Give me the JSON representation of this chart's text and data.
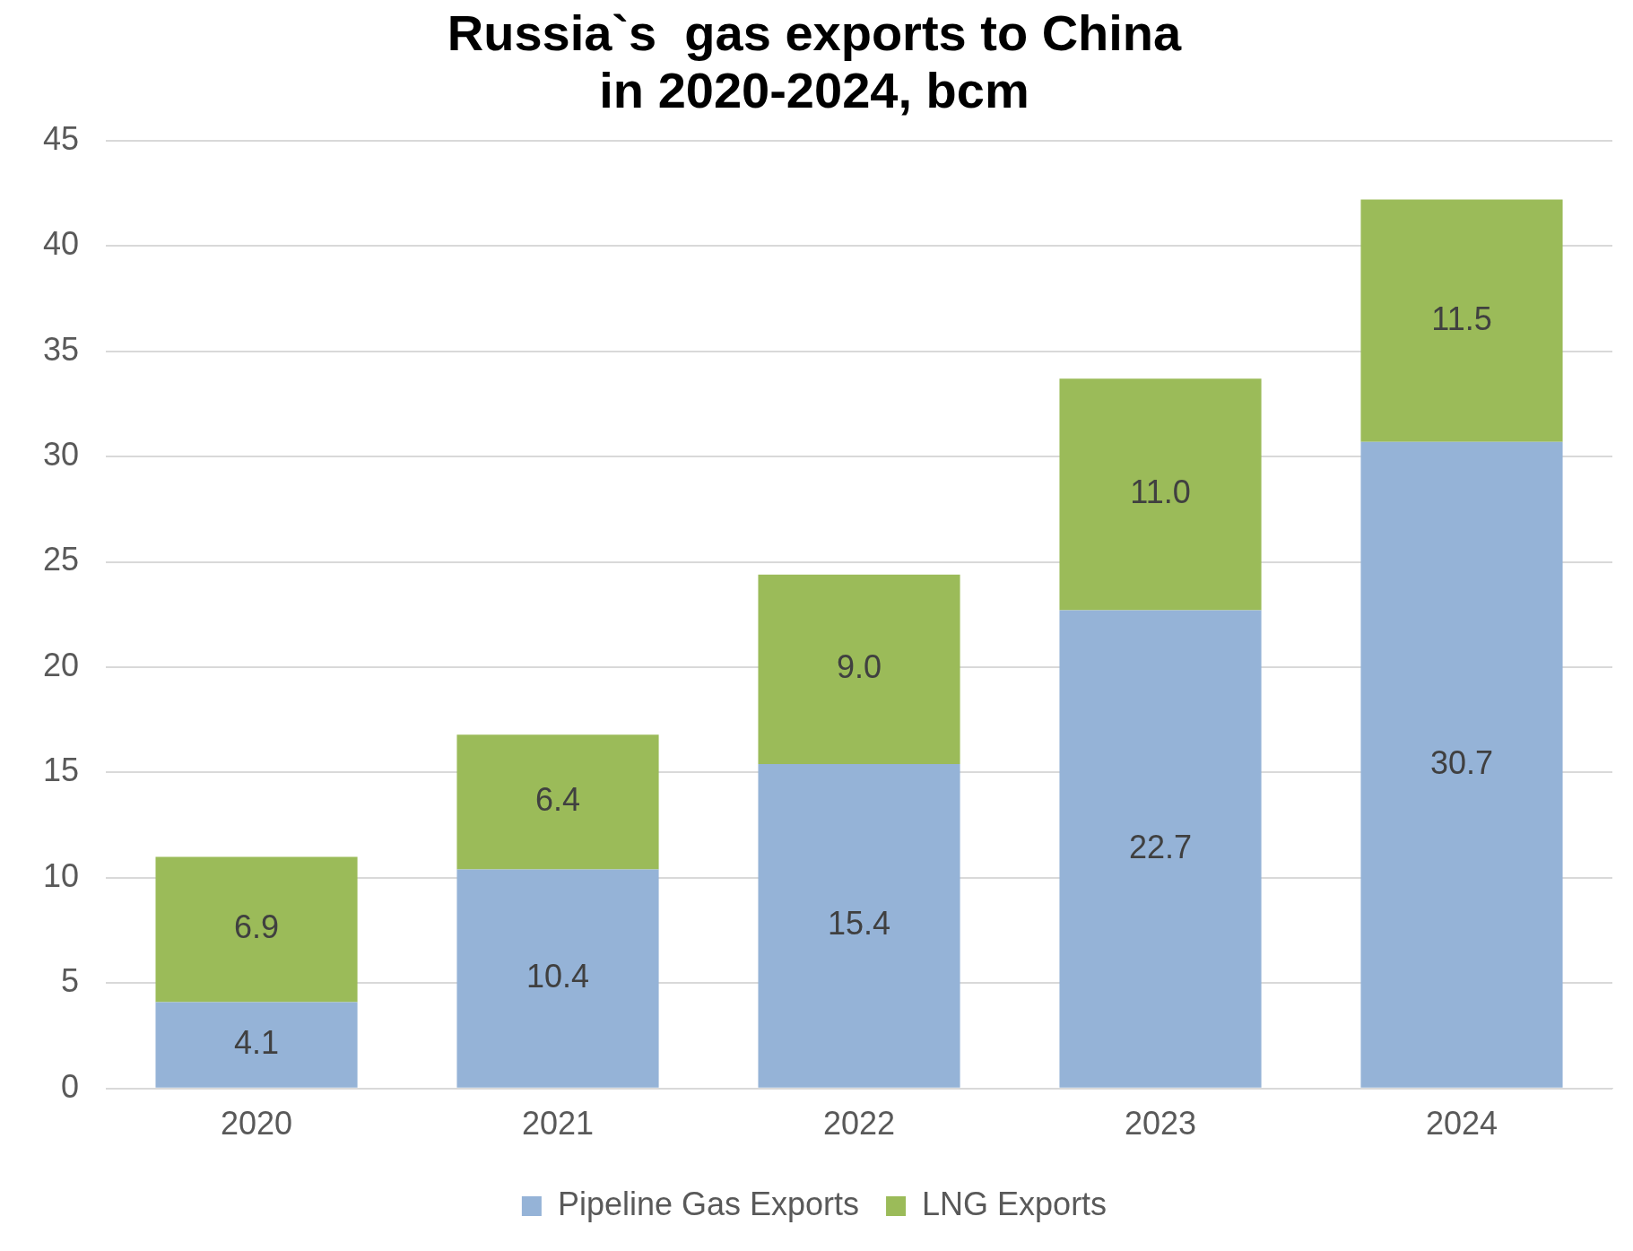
{
  "chart_data": {
    "type": "bar",
    "title": [
      "Russia`s  gas exports to China",
      "in 2020-2024, bcm"
    ],
    "categories": [
      "2020",
      "2021",
      "2022",
      "2023",
      "2024"
    ],
    "series": [
      {
        "name": "Pipeline Gas Exports",
        "color": "#95b3d7",
        "values": [
          4.1,
          10.4,
          15.4,
          22.7,
          30.7
        ],
        "value_labels": [
          "4.1",
          "10.4",
          "15.4",
          "22.7",
          "30.7"
        ]
      },
      {
        "name": "LNG Exports",
        "color": "#9bbb59",
        "values": [
          6.9,
          6.4,
          9.0,
          11.0,
          11.5
        ],
        "value_labels": [
          "6.9",
          "6.4",
          "9.0",
          "11.0",
          "11.5"
        ]
      }
    ],
    "stacked": true,
    "ylim": [
      0,
      45
    ],
    "yticks": [
      0,
      5,
      10,
      15,
      20,
      25,
      30,
      35,
      40,
      45
    ],
    "grid": "y",
    "legend": "bottom"
  }
}
